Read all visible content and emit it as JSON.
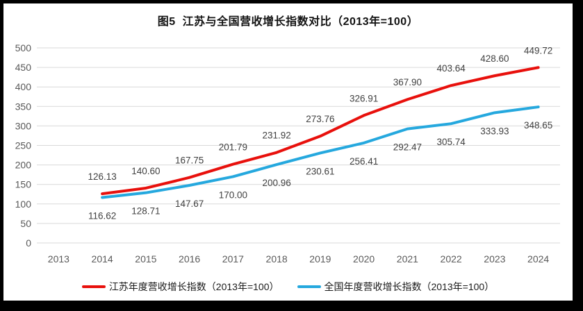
{
  "title": "图5  江苏与全国营收增长指数对比（2013年=100）",
  "chart_data": {
    "type": "line",
    "categories": [
      "2013",
      "2014",
      "2015",
      "2016",
      "2017",
      "2018",
      "2019",
      "2020",
      "2021",
      "2022",
      "2023",
      "2024"
    ],
    "series": [
      {
        "name": "江苏年度营收增长指数（2013年=100）",
        "color": "#e8100c",
        "label_position": "above",
        "values": [
          null,
          126.13,
          140.6,
          167.75,
          201.79,
          231.92,
          273.76,
          326.91,
          367.9,
          403.64,
          428.6,
          449.72
        ]
      },
      {
        "name": "全国年度营收增长指数（2013年=100）",
        "color": "#25a8de",
        "label_position": "below",
        "values": [
          null,
          116.62,
          128.71,
          147.67,
          170.0,
          200.96,
          230.61,
          256.41,
          292.47,
          305.74,
          333.93,
          348.65
        ]
      }
    ],
    "ylim": [
      0,
      500
    ],
    "yticks": [
      0,
      50,
      100,
      150,
      200,
      250,
      300,
      350,
      400,
      450,
      500
    ],
    "grid": true,
    "legend_position": "bottom",
    "data_labels_decimals": 2
  },
  "colors": {
    "gridline": "#d9d9d9",
    "axis_label": "#595959",
    "data_label": "#404040",
    "title": "#111111",
    "frame_border": "#000000",
    "panel_background": "#ffffff"
  }
}
